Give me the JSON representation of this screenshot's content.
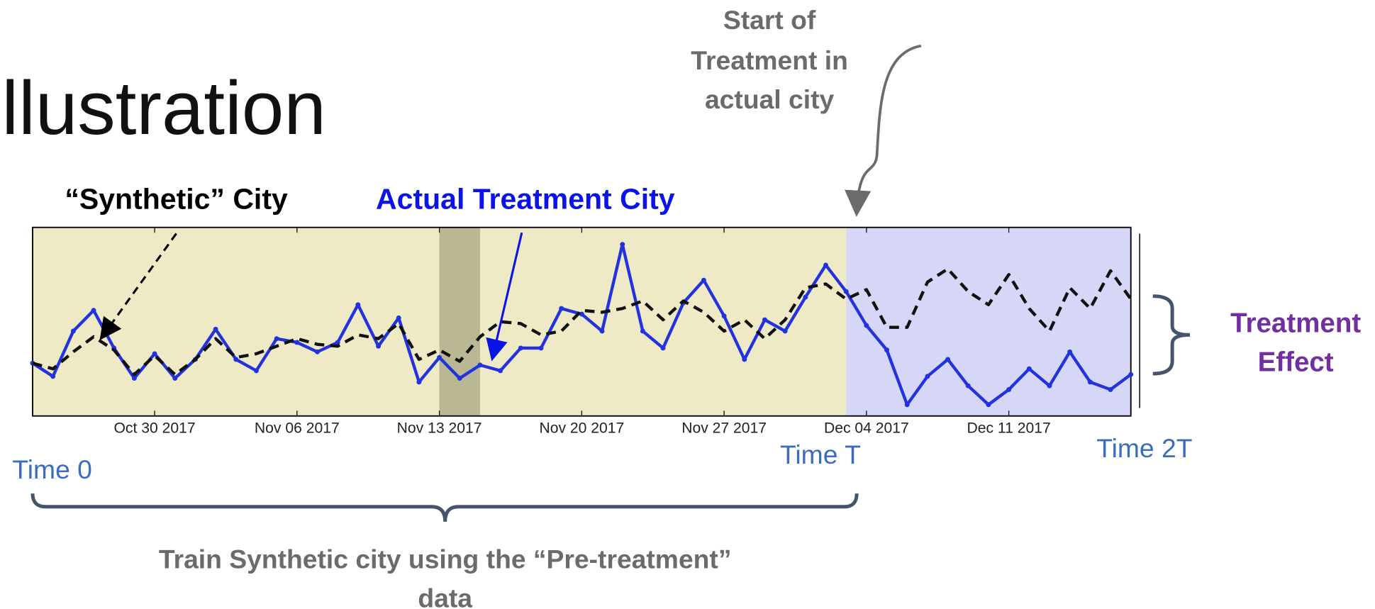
{
  "chart_data": {
    "type": "line",
    "title": "Illustration",
    "x": [
      "2017-10-24",
      "2017-10-25",
      "2017-10-26",
      "2017-10-27",
      "2017-10-28",
      "2017-10-29",
      "2017-10-30",
      "2017-10-31",
      "2017-11-01",
      "2017-11-02",
      "2017-11-03",
      "2017-11-04",
      "2017-11-05",
      "2017-11-06",
      "2017-11-07",
      "2017-11-08",
      "2017-11-09",
      "2017-11-10",
      "2017-11-11",
      "2017-11-12",
      "2017-11-13",
      "2017-11-14",
      "2017-11-15",
      "2017-11-16",
      "2017-11-17",
      "2017-11-18",
      "2017-11-19",
      "2017-11-20",
      "2017-11-21",
      "2017-11-22",
      "2017-11-23",
      "2017-11-24",
      "2017-11-25",
      "2017-11-26",
      "2017-11-27",
      "2017-11-28",
      "2017-11-29",
      "2017-11-30",
      "2017-12-01",
      "2017-12-02",
      "2017-12-03",
      "2017-12-04",
      "2017-12-05",
      "2017-12-06",
      "2017-12-07",
      "2017-12-08",
      "2017-12-09",
      "2017-12-10",
      "2017-12-11",
      "2017-12-12",
      "2017-12-13",
      "2017-12-14",
      "2017-12-15",
      "2017-12-16",
      "2017-12-17"
    ],
    "series": [
      {
        "name": "Actual Treatment City",
        "color": "#2233dd",
        "dash": false,
        "markers": true,
        "values": [
          28,
          21,
          45,
          56,
          36,
          20,
          33,
          20,
          30,
          46,
          30,
          24,
          41,
          39,
          34,
          39,
          59,
          37,
          52,
          18,
          31,
          20,
          27,
          24,
          36,
          36,
          57,
          54,
          45,
          91,
          45,
          36,
          60,
          72,
          53,
          30,
          51,
          45,
          63,
          80,
          66,
          48,
          35,
          6,
          21,
          30,
          16,
          6,
          14,
          25,
          16,
          34,
          18,
          14,
          22
        ]
      },
      {
        "name": "“Synthetic” City",
        "color": "#111111",
        "dash": true,
        "markers": false,
        "values": [
          28,
          25,
          34,
          42,
          35,
          22,
          32,
          22,
          30,
          41,
          31,
          33,
          37,
          41,
          38,
          37,
          43,
          41,
          49,
          30,
          35,
          29,
          42,
          50,
          49,
          43,
          45,
          56,
          55,
          57,
          61,
          51,
          61,
          55,
          45,
          51,
          41,
          51,
          68,
          70,
          62,
          67,
          47,
          47,
          71,
          78,
          66,
          59,
          75,
          57,
          45,
          68,
          57,
          77,
          62
        ]
      }
    ],
    "xlim": [
      "2017-10-24",
      "2017-12-17"
    ],
    "ylim": [
      0,
      100
    ],
    "xticks": [
      {
        "value": "2017-10-30",
        "label": "Oct 30 2017"
      },
      {
        "value": "2017-11-06",
        "label": "Nov 06 2017"
      },
      {
        "value": "2017-11-13",
        "label": "Nov 13 2017"
      },
      {
        "value": "2017-11-20",
        "label": "Nov 20 2017"
      },
      {
        "value": "2017-11-27",
        "label": "Nov 27 2017"
      },
      {
        "value": "2017-12-04",
        "label": "Dec 04 2017"
      },
      {
        "value": "2017-12-11",
        "label": "Dec 11 2017"
      }
    ],
    "shaded_spans": [
      {
        "start": "2017-10-24",
        "end": "2017-12-03",
        "color": "#eeeac6"
      },
      {
        "start": "2017-12-03",
        "end": "2017-12-17",
        "color": "#d6d7f6"
      },
      {
        "start": "2017-11-13",
        "end": "2017-11-15",
        "color": "#bab894"
      }
    ],
    "annotations": {
      "synthetic_label": "“Synthetic” City",
      "actual_label": "Actual Treatment City",
      "start_treatment": [
        "Start of",
        "Treatment in",
        "actual city"
      ],
      "treatment_effect": [
        "Treatment",
        "Effect"
      ],
      "time_0": "Time 0",
      "time_t": "Time T",
      "time_2t": "Time 2T",
      "train_note": [
        "Train Synthetic city using the “Pre-treatment”",
        "data"
      ]
    }
  }
}
